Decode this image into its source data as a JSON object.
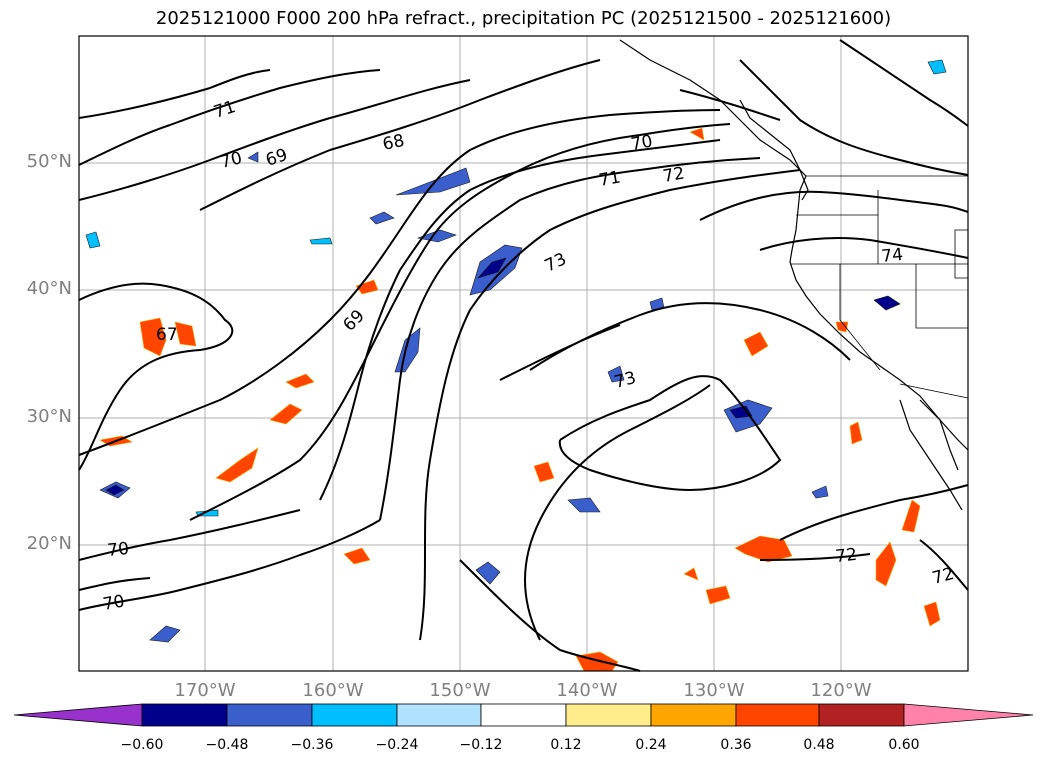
{
  "title": "2025121000 F000 200 hPa refract., precipitation PC (2025121500 - 2025121600)",
  "map": {
    "region": "North-East Pacific / western North America",
    "lat_labels": [
      "50°N",
      "40°N",
      "30°N",
      "20°N"
    ],
    "lon_labels": [
      "170°W",
      "160°W",
      "150°W",
      "140°W",
      "130°W",
      "120°W"
    ],
    "contour_labels": [
      "71",
      "70",
      "69",
      "68",
      "70",
      "71",
      "72",
      "73",
      "69",
      "67",
      "74",
      "73",
      "70",
      "70",
      "72",
      "72"
    ]
  },
  "colorbar": {
    "ticks": [
      "−0.60",
      "−0.48",
      "−0.36",
      "−0.24",
      "−0.12",
      "0.12",
      "0.24",
      "0.36",
      "0.48",
      "0.60"
    ],
    "colors": [
      "#9932cc",
      "#00008b",
      "#3a5fcd",
      "#00bfff",
      "#b0e2ff",
      "#ffffff",
      "#ffec8b",
      "#ffa500",
      "#ff4500",
      "#b22222",
      "#ff82ab"
    ]
  }
}
